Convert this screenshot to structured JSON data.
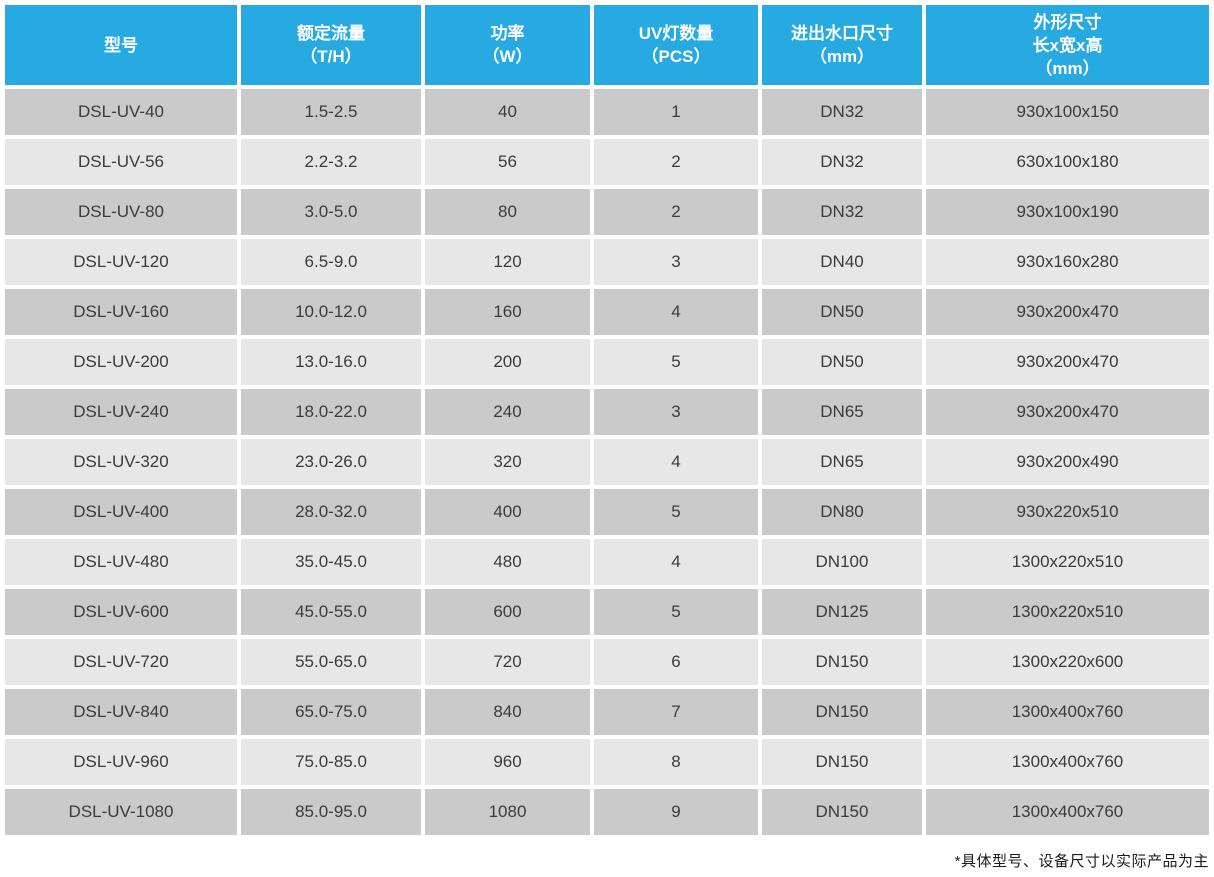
{
  "colors": {
    "header_bg": "#27AAE1",
    "header_text": "#FFFFFF",
    "row_dark": "#CACACA",
    "row_light": "#E8E7E7",
    "body_text": "#3B3B3B",
    "separator": "#FFFFFF"
  },
  "chart_data": {
    "type": "table",
    "columns": [
      {
        "id": "model",
        "label_lines": [
          "型号"
        ]
      },
      {
        "id": "flow",
        "label_lines": [
          "额定流量",
          "（T/H）"
        ]
      },
      {
        "id": "power",
        "label_lines": [
          "功率",
          "（W）"
        ]
      },
      {
        "id": "lamps",
        "label_lines": [
          "UV灯数量",
          "（PCS）"
        ]
      },
      {
        "id": "port",
        "label_lines": [
          "进出水口尺寸",
          "（mm）"
        ]
      },
      {
        "id": "size",
        "label_lines": [
          "外形尺寸",
          "长x宽x高",
          "（mm）"
        ]
      }
    ],
    "rows": [
      [
        "DSL-UV-40",
        "1.5-2.5",
        "40",
        "1",
        "DN32",
        "930x100x150"
      ],
      [
        "DSL-UV-56",
        "2.2-3.2",
        "56",
        "2",
        "DN32",
        "630x100x180"
      ],
      [
        "DSL-UV-80",
        "3.0-5.0",
        "80",
        "2",
        "DN32",
        "930x100x190"
      ],
      [
        "DSL-UV-120",
        "6.5-9.0",
        "120",
        "3",
        "DN40",
        "930x160x280"
      ],
      [
        "DSL-UV-160",
        "10.0-12.0",
        "160",
        "4",
        "DN50",
        "930x200x470"
      ],
      [
        "DSL-UV-200",
        "13.0-16.0",
        "200",
        "5",
        "DN50",
        "930x200x470"
      ],
      [
        "DSL-UV-240",
        "18.0-22.0",
        "240",
        "3",
        "DN65",
        "930x200x470"
      ],
      [
        "DSL-UV-320",
        "23.0-26.0",
        "320",
        "4",
        "DN65",
        "930x200x490"
      ],
      [
        "DSL-UV-400",
        "28.0-32.0",
        "400",
        "5",
        "DN80",
        "930x220x510"
      ],
      [
        "DSL-UV-480",
        "35.0-45.0",
        "480",
        "4",
        "DN100",
        "1300x220x510"
      ],
      [
        "DSL-UV-600",
        "45.0-55.0",
        "600",
        "5",
        "DN125",
        "1300x220x510"
      ],
      [
        "DSL-UV-720",
        "55.0-65.0",
        "720",
        "6",
        "DN150",
        "1300x220x600"
      ],
      [
        "DSL-UV-840",
        "65.0-75.0",
        "840",
        "7",
        "DN150",
        "1300x400x760"
      ],
      [
        "DSL-UV-960",
        "75.0-85.0",
        "960",
        "8",
        "DN150",
        "1300x400x760"
      ],
      [
        "DSL-UV-1080",
        "85.0-95.0",
        "1080",
        "9",
        "DN150",
        "1300x400x760"
      ]
    ],
    "footnote": "*具体型号、设备尺寸以实际产品为主"
  }
}
